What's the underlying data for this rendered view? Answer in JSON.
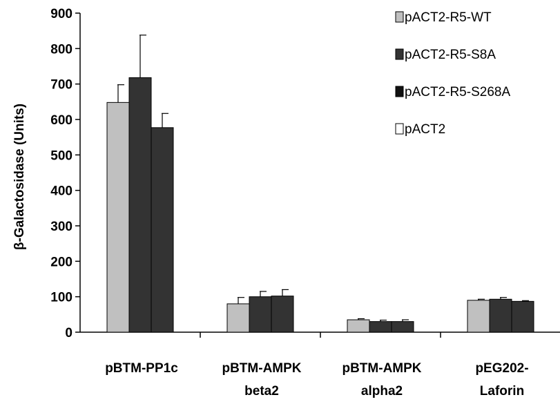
{
  "chart_data": {
    "type": "bar",
    "ylabel": "β-Galactosidase (Units)",
    "xlabel": "",
    "ylim": [
      0,
      900
    ],
    "yticks": [
      0,
      100,
      200,
      300,
      400,
      500,
      600,
      700,
      800,
      900
    ],
    "categories": [
      [
        "pBTM-PP1c"
      ],
      [
        "pBTM-AMPK",
        "beta2"
      ],
      [
        "pBTM-AMPK",
        "alpha2"
      ],
      [
        "pEG202-",
        "Laforin"
      ]
    ],
    "series": [
      {
        "name": "pACT2-R5-WT",
        "values": [
          648,
          80,
          35,
          90
        ],
        "errors": [
          50,
          18,
          3,
          3
        ],
        "color": "#c0c0c0"
      },
      {
        "name": "pACT2-R5-S8A",
        "values": [
          718,
          100,
          30,
          93
        ],
        "errors": [
          120,
          15,
          4,
          5
        ],
        "color": "#333333"
      },
      {
        "name": "pACT2-R5-S268A",
        "values": [
          577,
          102,
          30,
          87
        ],
        "errors": [
          40,
          18,
          5,
          2
        ],
        "color": "#333333"
      },
      {
        "name": "pACT2",
        "values": [
          0,
          0,
          0,
          0
        ],
        "errors": [
          0,
          0,
          0,
          0
        ],
        "color": "#ffffff"
      }
    ],
    "legend_placement": "top-right",
    "grid": false
  }
}
